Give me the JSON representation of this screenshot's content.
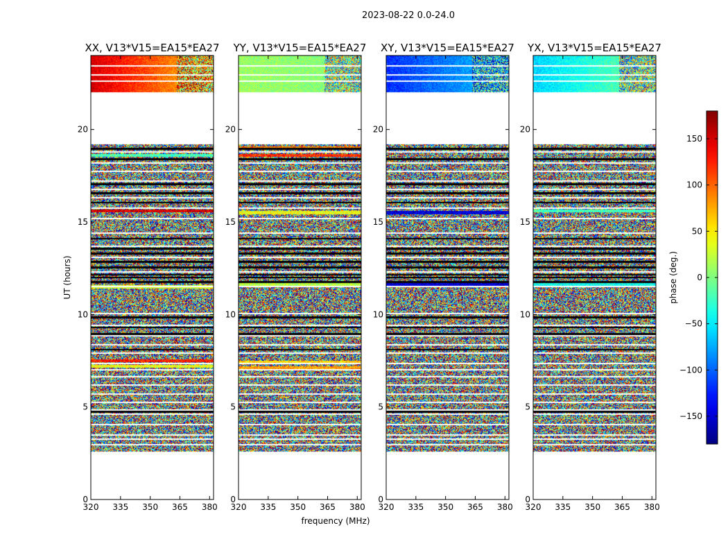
{
  "chart_data": {
    "type": "heatmap",
    "suptitle": "2023-08-22 0.0-24.0",
    "xlabel": "frequency (MHz)",
    "ylabel": "UT (hours)",
    "xlim": [
      320,
      382
    ],
    "ylim": [
      0,
      24
    ],
    "xticks": [
      320,
      335,
      350,
      365,
      380
    ],
    "yticks": [
      0,
      5,
      10,
      15,
      20
    ],
    "colorbar": {
      "label": "phase (deg.)",
      "range": [
        -180,
        180
      ],
      "ticks": [
        150,
        100,
        50,
        0,
        -50,
        -100,
        -150
      ],
      "colormap": "jet"
    },
    "panels": [
      {
        "pol": "XX",
        "title": "XX, V13*V15=EA15*EA27",
        "top_band_phase": [
          150,
          60
        ],
        "flag_bands": [
          [
            18.6,
            -20
          ],
          [
            15.6,
            150
          ],
          [
            11.5,
            30
          ],
          [
            7.5,
            130
          ],
          [
            7.2,
            40
          ]
        ]
      },
      {
        "pol": "YY",
        "title": "YY, V13*V15=EA15*EA27",
        "top_band_phase": [
          10,
          0
        ],
        "flag_bands": [
          [
            18.6,
            120
          ],
          [
            19.0,
            90
          ],
          [
            15.5,
            40
          ],
          [
            11.6,
            20
          ],
          [
            7.4,
            60
          ],
          [
            7.1,
            80
          ]
        ]
      },
      {
        "pol": "XY",
        "title": "XY, V13*V15=EA15*EA27",
        "top_band_phase": [
          -120,
          -60
        ],
        "flag_bands": [
          [
            15.5,
            -150
          ],
          [
            11.6,
            -150
          ]
        ]
      },
      {
        "pol": "YX",
        "title": "YX, V13*V15=EA15*EA27",
        "top_band_phase": [
          -60,
          0
        ],
        "flag_bands": [
          [
            15.6,
            -20
          ],
          [
            11.6,
            -40
          ]
        ]
      }
    ],
    "data_segments_hours": [
      [
        2.6,
        19.2
      ],
      [
        22.0,
        24.0
      ]
    ],
    "gap_rows_hours": [
      2.95,
      3.25,
      3.5,
      4.05,
      4.6,
      4.85,
      5.25,
      5.7,
      6.2,
      6.65,
      7.0,
      7.35,
      7.9,
      8.35,
      8.85,
      9.4,
      10.05,
      11.5,
      12.3,
      13.1,
      13.7,
      14.4,
      15.2,
      15.75,
      16.3,
      16.75,
      17.2,
      17.75,
      18.2,
      18.8,
      22.6,
      22.95,
      23.45
    ],
    "dark_rows_hours": [
      4.75,
      8.1,
      8.95,
      9.3,
      9.85,
      11.75,
      12.0,
      12.15,
      12.55,
      12.85,
      13.3,
      13.55,
      14.1,
      16.05,
      16.55,
      17.05,
      18.4,
      18.95
    ]
  }
}
